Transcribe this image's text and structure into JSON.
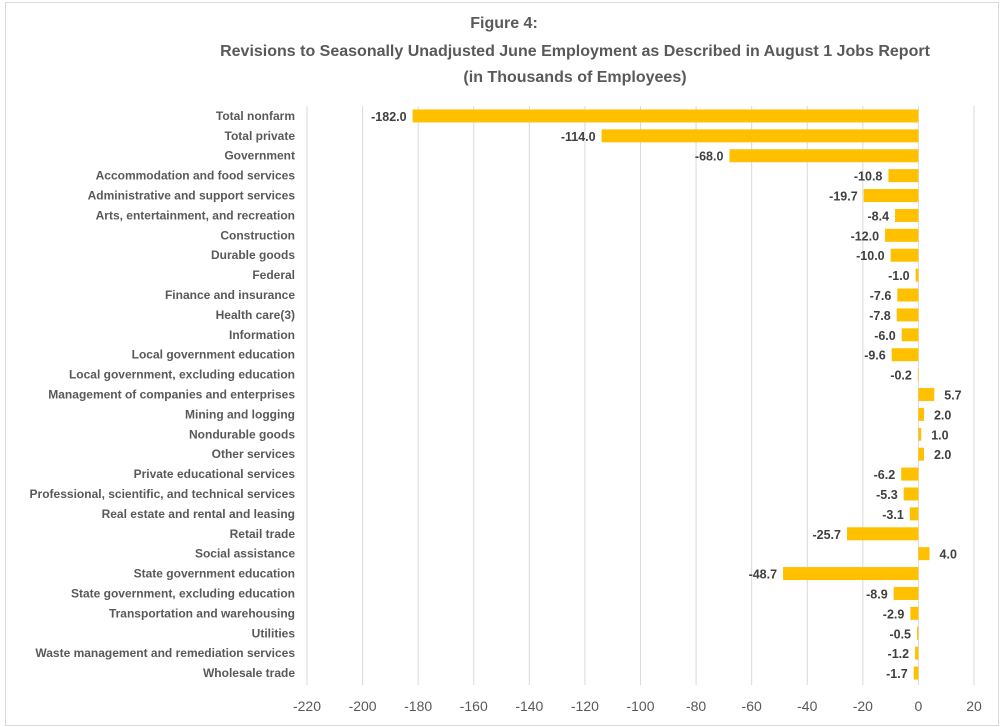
{
  "chart_data": {
    "type": "bar",
    "orientation": "horizontal",
    "title": "Figure 4:",
    "subtitle": "Revisions to Seasonally Unadjusted June Employment as Described in August 1 Jobs Report",
    "subtitle2": "(in Thousands of Employees)",
    "categories": [
      "Total nonfarm",
      "Total private",
      "Government",
      "Accommodation and food services",
      "Administrative and support services",
      "Arts, entertainment, and recreation",
      "Construction",
      "Durable goods",
      "Federal",
      "Finance and insurance",
      "Health care(3)",
      "Information",
      "Local government education",
      "Local government, excluding education",
      "Management of companies and enterprises",
      "Mining and logging",
      "Nondurable goods",
      "Other services",
      "Private educational services",
      "Professional, scientific, and technical services",
      "Real estate and rental and leasing",
      "Retail trade",
      "Social assistance",
      "State government education",
      "State government, excluding education",
      "Transportation and warehousing",
      "Utilities",
      "Waste management and remediation services",
      "Wholesale trade"
    ],
    "values": [
      -182.0,
      -114.0,
      -68.0,
      -10.8,
      -19.7,
      -8.4,
      -12.0,
      -10.0,
      -1.0,
      -7.6,
      -7.8,
      -6.0,
      -9.6,
      -0.2,
      5.7,
      2.0,
      1.0,
      2.0,
      -6.2,
      -5.3,
      -3.1,
      -25.7,
      4.0,
      -48.7,
      -8.9,
      -2.9,
      -0.5,
      -1.2,
      -1.7
    ],
    "data_labels": [
      "-182.0",
      "-114.0",
      "-68.0",
      "-10.8",
      "-19.7",
      "-8.4",
      "-12.0",
      "-10.0",
      "-1.0",
      "-7.6",
      "-7.8",
      "-6.0",
      "-9.6",
      "-0.2",
      "5.7",
      "2.0",
      "1.0",
      "2.0",
      "-6.2",
      "-5.3",
      "-3.1",
      "-25.7",
      "4.0",
      "-48.7",
      "-8.9",
      "-2.9",
      "-0.5",
      "-1.2",
      "-1.7"
    ],
    "xlim": [
      -220,
      20
    ],
    "xticks": [
      "-220",
      "-200",
      "-180",
      "-160",
      "-140",
      "-120",
      "-100",
      "-80",
      "-60",
      "-40",
      "-20",
      "0",
      "20"
    ],
    "xlabel": "",
    "ylabel": "",
    "grid": "vertical",
    "legend": "none",
    "colors": {
      "bar": "#FFC000",
      "text": "#595959",
      "grid": "#d9d9d9"
    }
  }
}
